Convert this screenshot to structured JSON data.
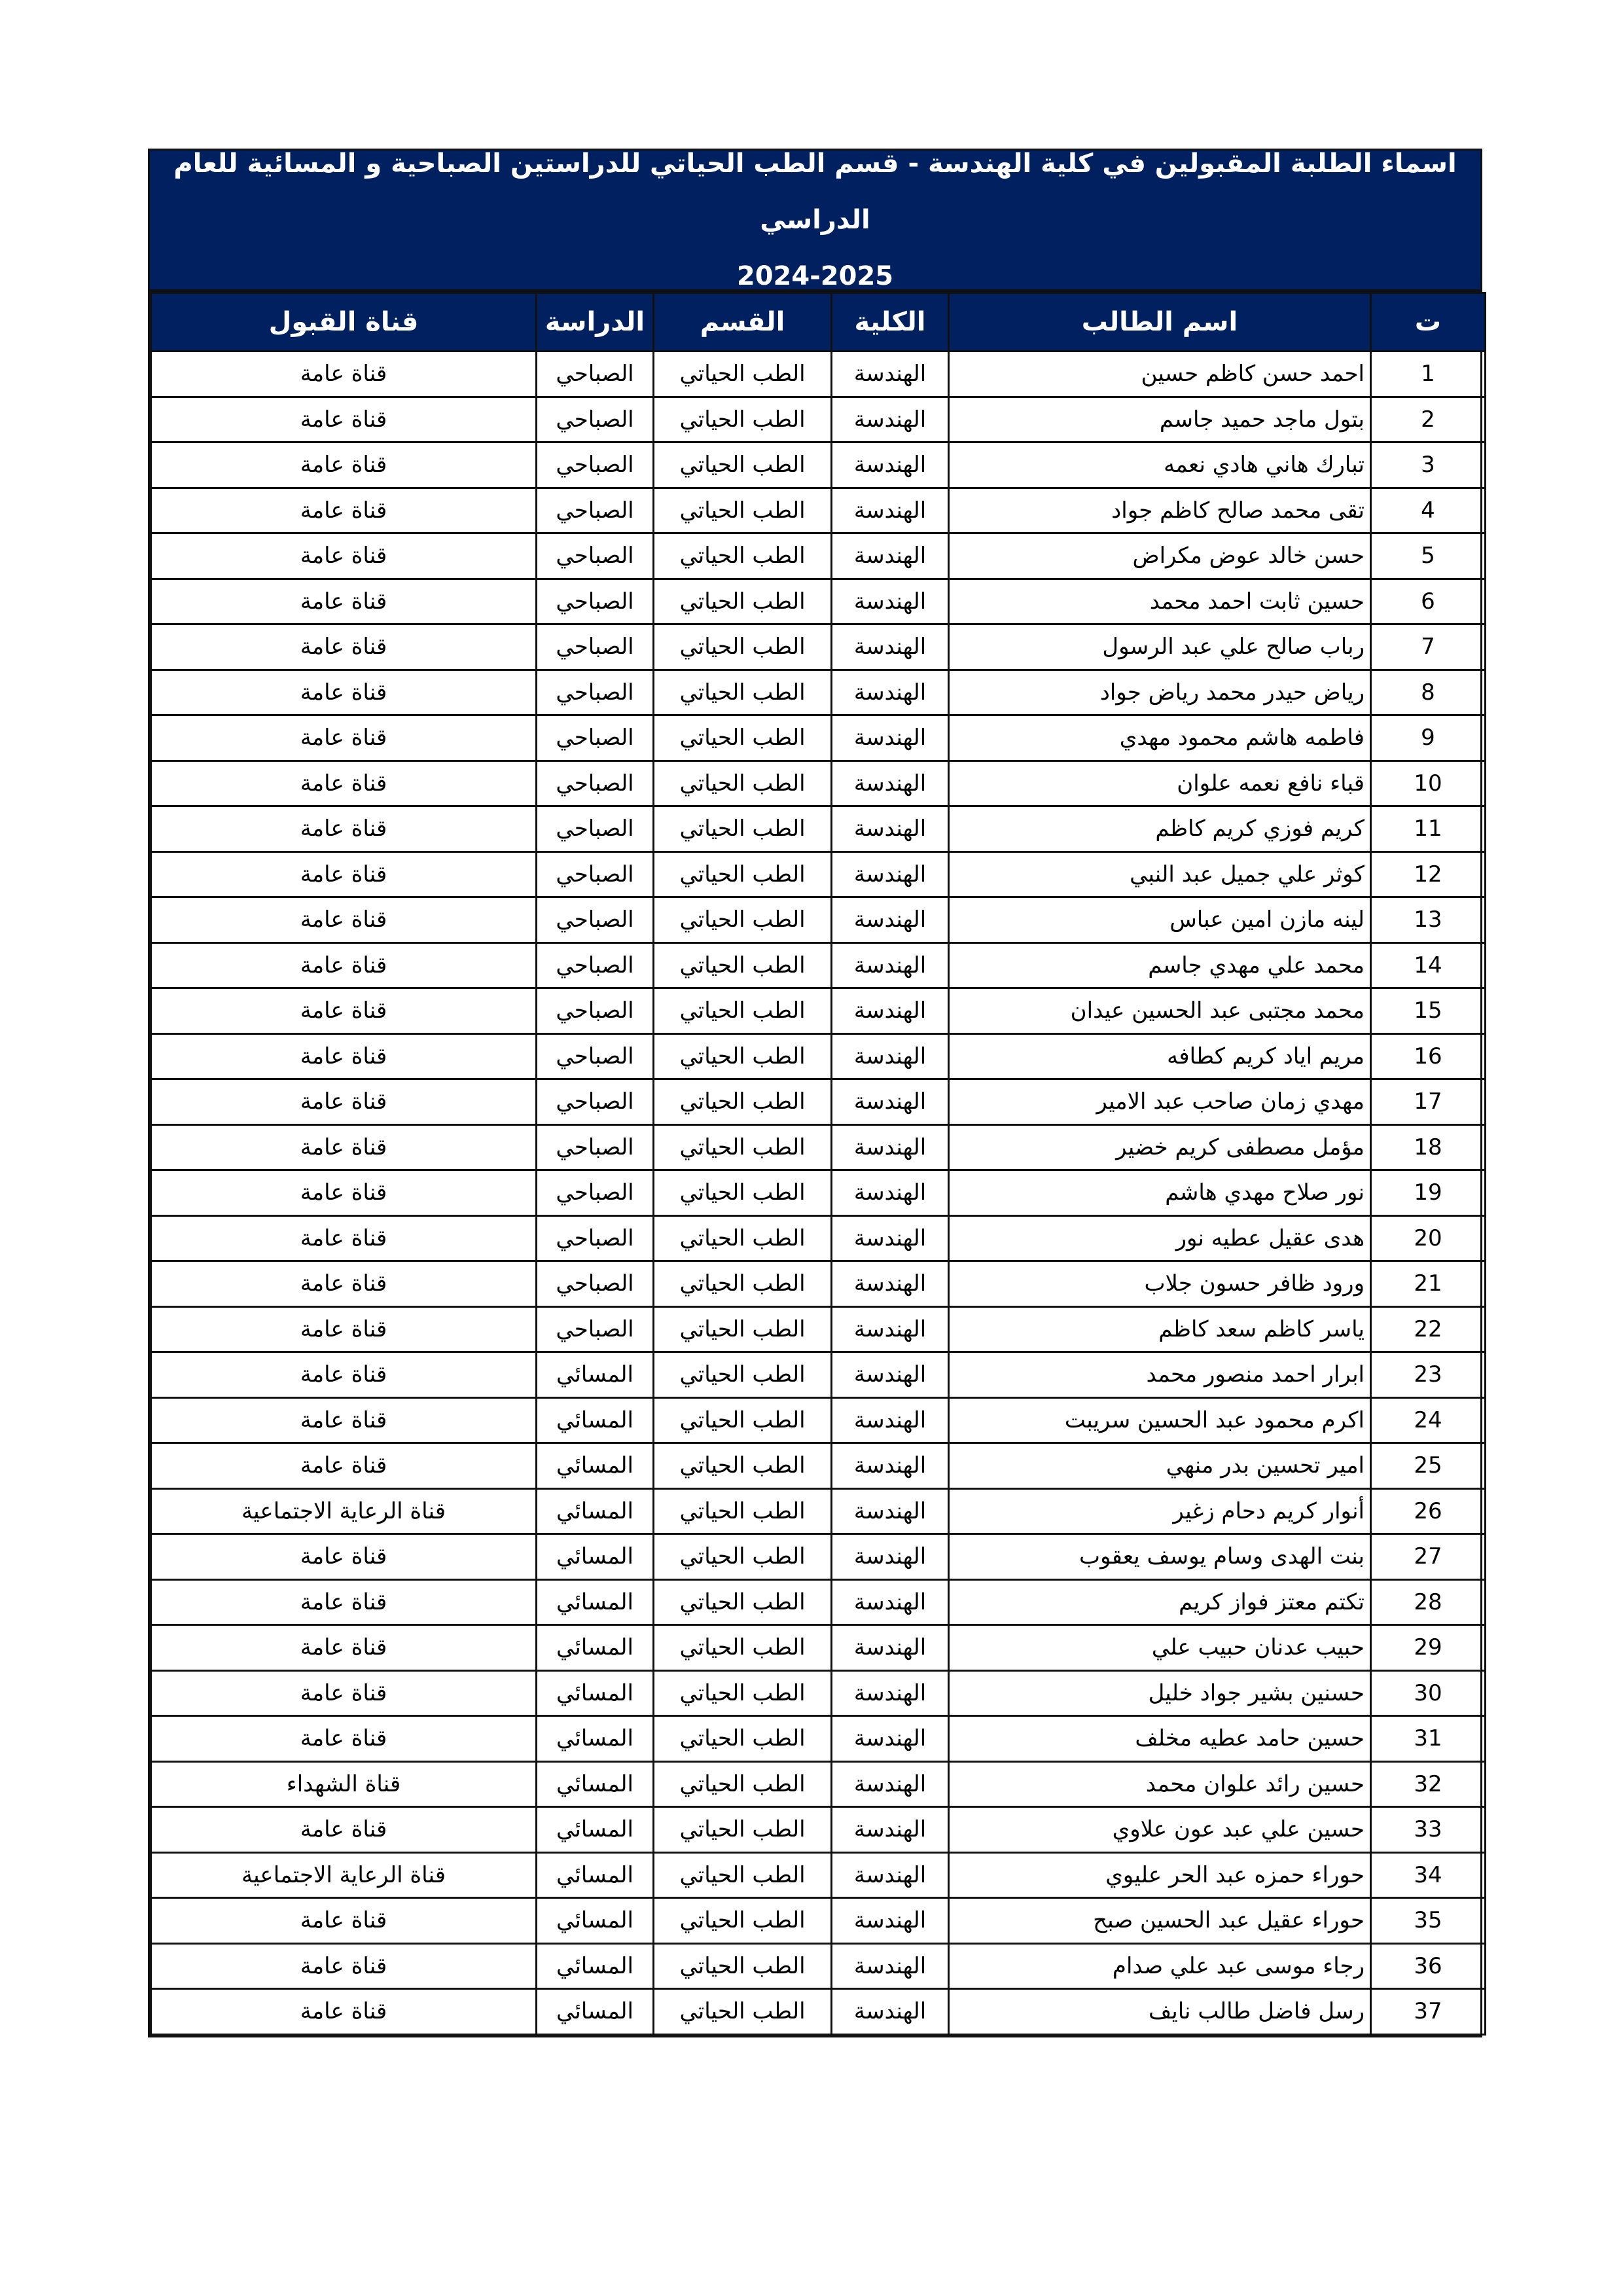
{
  "title": {
    "line1": "اسماء الطلبة المقبولين في كلية الهندسة - قسم الطب الحياتي للدراستين الصباحية و المسائية للعام الدراسي",
    "line2": "2024-2025"
  },
  "colors": {
    "header_bg": "#012060",
    "header_text": "#ffffff"
  },
  "columns": [
    "ت",
    "اسم الطالب",
    "الكلية",
    "القسم",
    "الدراسة",
    "قناة القبول"
  ],
  "rows": [
    [
      "1",
      "احمد حسن كاظم حسين",
      "الهندسة",
      "الطب الحياتي",
      "الصباحي",
      "قناة عامة"
    ],
    [
      "2",
      "بتول ماجد حميد جاسم",
      "الهندسة",
      "الطب الحياتي",
      "الصباحي",
      "قناة عامة"
    ],
    [
      "3",
      "تبارك هاني هادي نعمه",
      "الهندسة",
      "الطب الحياتي",
      "الصباحي",
      "قناة عامة"
    ],
    [
      "4",
      "تقى محمد صالح كاظم جواد",
      "الهندسة",
      "الطب الحياتي",
      "الصباحي",
      "قناة عامة"
    ],
    [
      "5",
      "حسن خالد عوض مكراض",
      "الهندسة",
      "الطب الحياتي",
      "الصباحي",
      "قناة عامة"
    ],
    [
      "6",
      "حسين ثابت احمد محمد",
      "الهندسة",
      "الطب الحياتي",
      "الصباحي",
      "قناة عامة"
    ],
    [
      "7",
      "رباب صالح علي عبد الرسول",
      "الهندسة",
      "الطب الحياتي",
      "الصباحي",
      "قناة عامة"
    ],
    [
      "8",
      "رياض حيدر محمد رياض جواد",
      "الهندسة",
      "الطب الحياتي",
      "الصباحي",
      "قناة عامة"
    ],
    [
      "9",
      "فاطمه هاشم محمود مهدي",
      "الهندسة",
      "الطب الحياتي",
      "الصباحي",
      "قناة عامة"
    ],
    [
      "10",
      "قباء نافع نعمه علوان",
      "الهندسة",
      "الطب الحياتي",
      "الصباحي",
      "قناة عامة"
    ],
    [
      "11",
      "كريم فوزي كريم كاظم",
      "الهندسة",
      "الطب الحياتي",
      "الصباحي",
      "قناة عامة"
    ],
    [
      "12",
      "كوثر علي جميل عبد النبي",
      "الهندسة",
      "الطب الحياتي",
      "الصباحي",
      "قناة عامة"
    ],
    [
      "13",
      "لينه مازن امين عباس",
      "الهندسة",
      "الطب الحياتي",
      "الصباحي",
      "قناة عامة"
    ],
    [
      "14",
      "محمد علي مهدي جاسم",
      "الهندسة",
      "الطب الحياتي",
      "الصباحي",
      "قناة عامة"
    ],
    [
      "15",
      "محمد مجتبى عبد الحسين عيدان",
      "الهندسة",
      "الطب الحياتي",
      "الصباحي",
      "قناة عامة"
    ],
    [
      "16",
      "مريم اياد كريم كطافه",
      "الهندسة",
      "الطب الحياتي",
      "الصباحي",
      "قناة عامة"
    ],
    [
      "17",
      "مهدي زمان صاحب عبد الامير",
      "الهندسة",
      "الطب الحياتي",
      "الصباحي",
      "قناة عامة"
    ],
    [
      "18",
      "مؤمل مصطفى كريم خضير",
      "الهندسة",
      "الطب الحياتي",
      "الصباحي",
      "قناة عامة"
    ],
    [
      "19",
      "نور صلاح مهدي هاشم",
      "الهندسة",
      "الطب الحياتي",
      "الصباحي",
      "قناة عامة"
    ],
    [
      "20",
      "هدى عقيل عطيه نور",
      "الهندسة",
      "الطب الحياتي",
      "الصباحي",
      "قناة عامة"
    ],
    [
      "21",
      "ورود ظافر حسون جلاب",
      "الهندسة",
      "الطب الحياتي",
      "الصباحي",
      "قناة عامة"
    ],
    [
      "22",
      "ياسر كاظم سعد كاظم",
      "الهندسة",
      "الطب الحياتي",
      "الصباحي",
      "قناة عامة"
    ],
    [
      "23",
      "ابرار احمد منصور محمد",
      "الهندسة",
      "الطب الحياتي",
      "المسائي",
      "قناة عامة"
    ],
    [
      "24",
      "اكرم محمود عبد الحسين سريبت",
      "الهندسة",
      "الطب الحياتي",
      "المسائي",
      "قناة عامة"
    ],
    [
      "25",
      "امير تحسين بدر منهي",
      "الهندسة",
      "الطب الحياتي",
      "المسائي",
      "قناة عامة"
    ],
    [
      "26",
      "أنوار كريم دحام زغير",
      "الهندسة",
      "الطب الحياتي",
      "المسائي",
      "قناة الرعاية الاجتماعية"
    ],
    [
      "27",
      "بنت الهدى وسام يوسف يعقوب",
      "الهندسة",
      "الطب الحياتي",
      "المسائي",
      "قناة عامة"
    ],
    [
      "28",
      "تكتم معتز فواز كريم",
      "الهندسة",
      "الطب الحياتي",
      "المسائي",
      "قناة عامة"
    ],
    [
      "29",
      "حبيب عدنان حبيب علي",
      "الهندسة",
      "الطب الحياتي",
      "المسائي",
      "قناة عامة"
    ],
    [
      "30",
      "حسنين بشير جواد خليل",
      "الهندسة",
      "الطب الحياتي",
      "المسائي",
      "قناة عامة"
    ],
    [
      "31",
      "حسين حامد عطيه مخلف",
      "الهندسة",
      "الطب الحياتي",
      "المسائي",
      "قناة عامة"
    ],
    [
      "32",
      "حسين رائد علوان محمد",
      "الهندسة",
      "الطب الحياتي",
      "المسائي",
      "قناة الشهداء"
    ],
    [
      "33",
      "حسين علي عبد عون علاوي",
      "الهندسة",
      "الطب الحياتي",
      "المسائي",
      "قناة عامة"
    ],
    [
      "34",
      "حوراء حمزه عبد الحر عليوي",
      "الهندسة",
      "الطب الحياتي",
      "المسائي",
      "قناة الرعاية الاجتماعية"
    ],
    [
      "35",
      "حوراء عقيل عبد الحسين صبح",
      "الهندسة",
      "الطب الحياتي",
      "المسائي",
      "قناة عامة"
    ],
    [
      "36",
      "رجاء موسى عبد علي صدام",
      "الهندسة",
      "الطب الحياتي",
      "المسائي",
      "قناة عامة"
    ],
    [
      "37",
      "رسل فاضل طالب نايف",
      "الهندسة",
      "الطب الحياتي",
      "المسائي",
      "قناة عامة"
    ]
  ]
}
